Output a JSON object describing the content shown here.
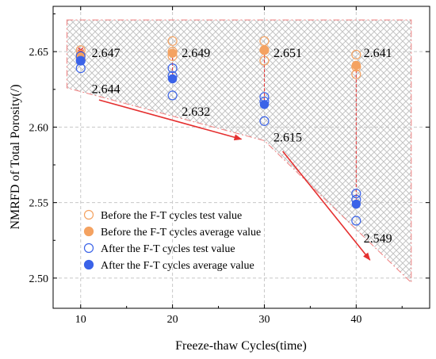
{
  "chart_data": {
    "type": "scatter",
    "xlabel": "Freeze-thaw Cycles(time)",
    "ylabel": "NMRFD of Total Porosity(/)",
    "xlim": [
      7,
      48
    ],
    "ylim": [
      2.48,
      2.68
    ],
    "x_ticks": [
      10,
      20,
      30,
      40
    ],
    "y_ticks": [
      2.5,
      2.55,
      2.6,
      2.65
    ],
    "y_tick_labels": [
      "2.50",
      "2.55",
      "2.60",
      "2.65"
    ],
    "grid": true,
    "legend_placement": "lower-left",
    "colors": {
      "before": "#F4A261",
      "after": "#3B63E8",
      "arrow": "#E53030",
      "region": "#F08080",
      "error": "#E53030"
    },
    "series": [
      {
        "name": "Before the F-T cycles test value",
        "marker": "open-circle",
        "color": "#F4A261",
        "points": [
          {
            "x": 10,
            "y": 2.651
          },
          {
            "x": 10,
            "y": 2.648
          },
          {
            "x": 10,
            "y": 2.645
          },
          {
            "x": 20,
            "y": 2.657
          },
          {
            "x": 20,
            "y": 2.65
          },
          {
            "x": 20,
            "y": 2.647
          },
          {
            "x": 30,
            "y": 2.657
          },
          {
            "x": 30,
            "y": 2.651
          },
          {
            "x": 30,
            "y": 2.644
          },
          {
            "x": 40,
            "y": 2.648
          },
          {
            "x": 40,
            "y": 2.64
          },
          {
            "x": 40,
            "y": 2.635
          }
        ]
      },
      {
        "name": "Before the F-T cycles average value",
        "marker": "filled-circle",
        "color": "#F4A261",
        "points": [
          {
            "x": 10,
            "y": 2.647
          },
          {
            "x": 20,
            "y": 2.649
          },
          {
            "x": 30,
            "y": 2.651
          },
          {
            "x": 40,
            "y": 2.641
          }
        ]
      },
      {
        "name": "After the F-T cycles test value",
        "marker": "open-circle",
        "color": "#3B63E8",
        "points": [
          {
            "x": 10,
            "y": 2.639
          },
          {
            "x": 10,
            "y": 2.644
          },
          {
            "x": 10,
            "y": 2.647
          },
          {
            "x": 20,
            "y": 2.621
          },
          {
            "x": 20,
            "y": 2.634
          },
          {
            "x": 20,
            "y": 2.639
          },
          {
            "x": 30,
            "y": 2.604
          },
          {
            "x": 30,
            "y": 2.617
          },
          {
            "x": 30,
            "y": 2.62
          },
          {
            "x": 40,
            "y": 2.538
          },
          {
            "x": 40,
            "y": 2.552
          },
          {
            "x": 40,
            "y": 2.556
          }
        ]
      },
      {
        "name": "After the F-T cycles average value",
        "marker": "filled-circle",
        "color": "#3B63E8",
        "points": [
          {
            "x": 10,
            "y": 2.644
          },
          {
            "x": 20,
            "y": 2.632
          },
          {
            "x": 30,
            "y": 2.615
          },
          {
            "x": 40,
            "y": 2.549
          }
        ]
      }
    ],
    "error_bars": [
      {
        "x": 10,
        "low": 2.644,
        "high": 2.651
      },
      {
        "x": 20,
        "low": 2.632,
        "high": 2.649
      },
      {
        "x": 30,
        "low": 2.615,
        "high": 2.651
      },
      {
        "x": 40,
        "low": 2.549,
        "high": 2.641
      }
    ],
    "shaded_region": [
      {
        "x": 8.5,
        "y": 2.671
      },
      {
        "x": 46,
        "y": 2.671
      },
      {
        "x": 46,
        "y": 2.497
      },
      {
        "x": 30,
        "y": 2.591
      },
      {
        "x": 8.5,
        "y": 2.626
      }
    ],
    "trend_arrows": [
      {
        "x1": 12,
        "y1": 2.618,
        "x2": 27.5,
        "y2": 2.592
      },
      {
        "x1": 32,
        "y1": 2.584,
        "x2": 41.5,
        "y2": 2.512
      }
    ],
    "annotations": [
      {
        "text": "2.647",
        "x": 11.2,
        "y": 2.6465
      },
      {
        "text": "2.644",
        "x": 11.2,
        "y": 2.6225
      },
      {
        "text": "2.649",
        "x": 21.0,
        "y": 2.6465
      },
      {
        "text": "2.632",
        "x": 21.0,
        "y": 2.6075
      },
      {
        "text": "2.651",
        "x": 31.0,
        "y": 2.6465
      },
      {
        "text": "2.615",
        "x": 31.0,
        "y": 2.5905
      },
      {
        "text": "2.641",
        "x": 40.8,
        "y": 2.6465
      },
      {
        "text": "2.549",
        "x": 40.8,
        "y": 2.5235
      }
    ]
  }
}
